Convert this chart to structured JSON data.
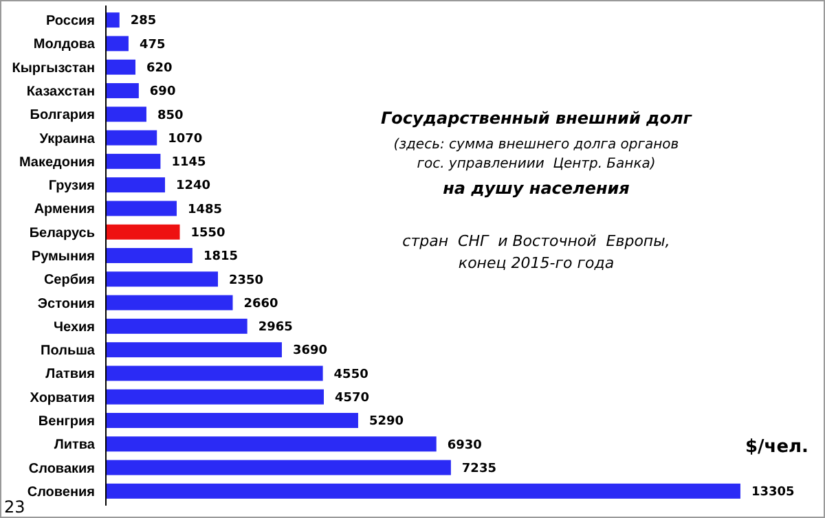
{
  "chart_data": {
    "type": "bar",
    "orientation": "horizontal",
    "title": "Государственный внешний долг",
    "subtitle": "(здесь: сумма внешнего долга органов\nгос. управлениии  Центр. Банка)",
    "categories": [
      "Россия",
      "Молдова",
      "Кыргызстан",
      "Казахстан",
      "Болгария",
      "Украина",
      "Македония",
      "Грузия",
      "Армения",
      "Беларусь",
      "Румыния",
      "Сербия",
      "Эстония",
      "Чехия",
      "Польша",
      "Латвия",
      "Хорватия",
      "Венгрия",
      "Литва",
      "Словакия",
      "Словения"
    ],
    "values": [
      285,
      475,
      620,
      690,
      850,
      1070,
      1145,
      1240,
      1485,
      1550,
      1815,
      2350,
      2660,
      2965,
      3690,
      4550,
      4570,
      5290,
      6930,
      7235,
      13305
    ],
    "colors": [
      "#2b2bf5",
      "#2b2bf5",
      "#2b2bf5",
      "#2b2bf5",
      "#2b2bf5",
      "#2b2bf5",
      "#2b2bf5",
      "#2b2bf5",
      "#2b2bf5",
      "#ee1111",
      "#2b2bf5",
      "#2b2bf5",
      "#2b2bf5",
      "#2b2bf5",
      "#2b2bf5",
      "#2b2bf5",
      "#2b2bf5",
      "#2b2bf5",
      "#2b2bf5",
      "#2b2bf5",
      "#2b2bf5"
    ],
    "data_labels": true,
    "annotations": [
      "на душу населения",
      "стран  СНГ  и Восточной  Европы,\nконец 2015-го года",
      "$/чел.",
      "23"
    ]
  }
}
